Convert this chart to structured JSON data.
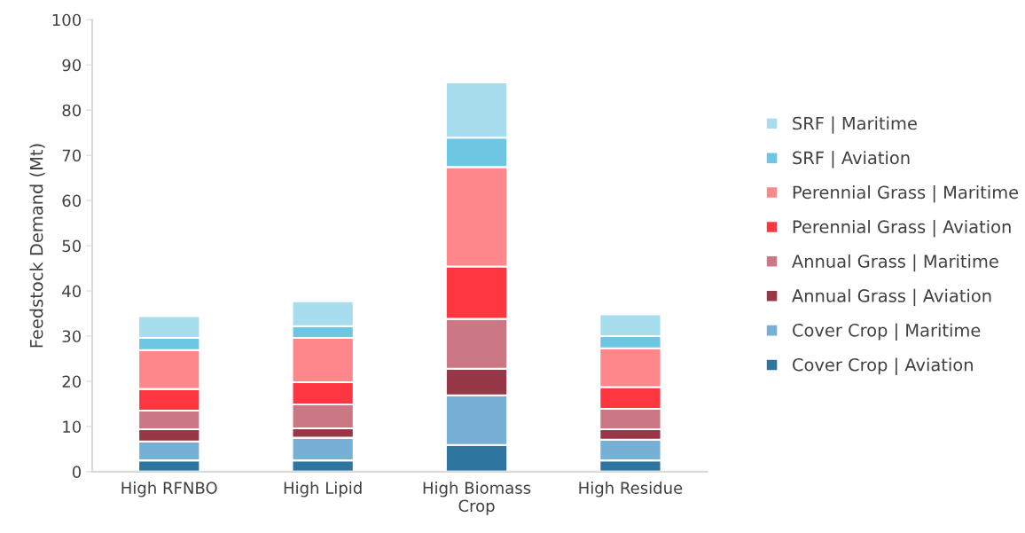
{
  "chart_data": {
    "type": "bar",
    "stacked": true,
    "ylabel": "Feedstock Demand (Mt)",
    "categories": [
      "High RFNBO",
      "High Lipid",
      "High Biomass\nCrop",
      "High Residue"
    ],
    "ylim": [
      0,
      100
    ],
    "yticks": [
      0,
      10,
      20,
      30,
      40,
      50,
      60,
      70,
      80,
      90,
      100
    ],
    "grid": false,
    "legend": "right",
    "series": [
      {
        "name": "Cover Crop | Aviation",
        "color": "#2e75a0",
        "values": [
          2.5,
          2.5,
          5.9,
          2.5
        ]
      },
      {
        "name": "Cover Crop | Maritime",
        "color": "#76b0d5",
        "values": [
          4.2,
          5.0,
          11.0,
          4.6
        ]
      },
      {
        "name": "Annual Grass | Aviation",
        "color": "#973747",
        "values": [
          2.7,
          2.1,
          5.9,
          2.3
        ]
      },
      {
        "name": "Annual Grass | Maritime",
        "color": "#cc7884",
        "values": [
          4.1,
          5.3,
          11.0,
          4.5
        ]
      },
      {
        "name": "Perennial Grass | Aviation",
        "color": "#fd3640",
        "values": [
          4.8,
          4.9,
          11.6,
          4.8
        ]
      },
      {
        "name": "Perennial Grass | Maritime",
        "color": "#fe878c",
        "values": [
          8.6,
          9.8,
          22.0,
          8.6
        ]
      },
      {
        "name": "SRF | Aviation",
        "color": "#6dc7e3",
        "values": [
          2.7,
          2.6,
          6.5,
          2.7
        ]
      },
      {
        "name": "SRF | Maritime",
        "color": "#a8dded",
        "values": [
          4.8,
          5.5,
          12.2,
          4.8
        ]
      }
    ]
  }
}
